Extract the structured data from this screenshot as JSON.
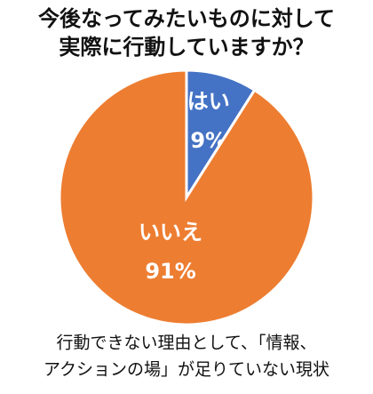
{
  "chart_data": {
    "type": "pie",
    "title": [
      "今後なってみたいものに対して",
      "実際に行動していますか？"
    ],
    "categories": [
      "はい",
      "いいえ"
    ],
    "values": [
      9,
      91
    ],
    "value_labels": [
      "9%",
      "91%"
    ],
    "colors": [
      "#4472c4",
      "#ed7d31"
    ],
    "annotation": [
      "行動できない理由として、「情報、",
      "アクションの場」が足りていない現状"
    ]
  }
}
